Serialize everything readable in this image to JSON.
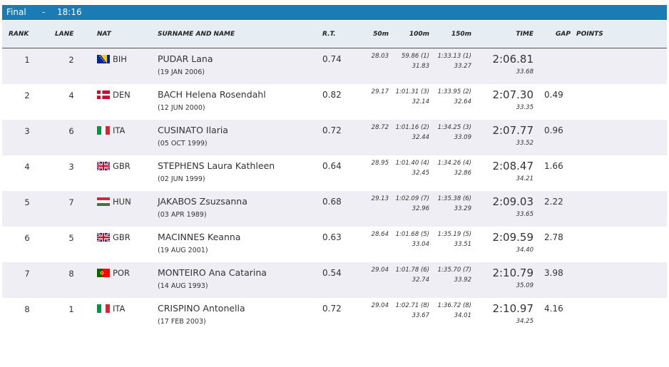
{
  "title_bar": {
    "phase": "Final",
    "separator": "-",
    "time": "18:16"
  },
  "columns": {
    "rank": "RANK",
    "lane": "LANE",
    "nat": "NAT",
    "name": "SURNAME AND NAME",
    "rt": "R.T.",
    "s50": "50m",
    "s100": "100m",
    "s150": "150m",
    "time": "TIME",
    "gap": "GAP",
    "points": "POINTS"
  },
  "rows": [
    {
      "rank": "1",
      "lane": "2",
      "flag": "bih-flag-icon",
      "nat": "BIH",
      "name": "PUDAR Lana",
      "dob": "(19 JAN 2006)",
      "rt": "0.74",
      "s50": "28.03",
      "s100": "59.86 (1)",
      "s100_lap": "31.83",
      "s150": "1:33.13 (1)",
      "s150_lap": "33.27",
      "time": "2:06.81",
      "time_lap": "33.68",
      "gap": ""
    },
    {
      "rank": "2",
      "lane": "4",
      "flag": "den-flag-icon",
      "nat": "DEN",
      "name": "BACH Helena Rosendahl",
      "dob": "(12 JUN 2000)",
      "rt": "0.82",
      "s50": "29.17",
      "s100": "1:01.31 (3)",
      "s100_lap": "32.14",
      "s150": "1:33.95 (2)",
      "s150_lap": "32.64",
      "time": "2:07.30",
      "time_lap": "33.35",
      "gap": "0.49"
    },
    {
      "rank": "3",
      "lane": "6",
      "flag": "ita-flag-icon",
      "nat": "ITA",
      "name": "CUSINATO Ilaria",
      "dob": "(05 OCT 1999)",
      "rt": "0.72",
      "s50": "28.72",
      "s100": "1:01.16 (2)",
      "s100_lap": "32.44",
      "s150": "1:34.25 (3)",
      "s150_lap": "33.09",
      "time": "2:07.77",
      "time_lap": "33.52",
      "gap": "0.96"
    },
    {
      "rank": "4",
      "lane": "3",
      "flag": "gbr-flag-icon",
      "nat": "GBR",
      "name": "STEPHENS Laura Kathleen",
      "dob": "(02 JUN 1999)",
      "rt": "0.64",
      "s50": "28.95",
      "s100": "1:01.40 (4)",
      "s100_lap": "32.45",
      "s150": "1:34.26 (4)",
      "s150_lap": "32.86",
      "time": "2:08.47",
      "time_lap": "34.21",
      "gap": "1.66"
    },
    {
      "rank": "5",
      "lane": "7",
      "flag": "hun-flag-icon",
      "nat": "HUN",
      "name": "JAKABOS Zsuzsanna",
      "dob": "(03 APR 1989)",
      "rt": "0.68",
      "s50": "29.13",
      "s100": "1:02.09 (7)",
      "s100_lap": "32.96",
      "s150": "1:35.38 (6)",
      "s150_lap": "33.29",
      "time": "2:09.03",
      "time_lap": "33.65",
      "gap": "2.22"
    },
    {
      "rank": "6",
      "lane": "5",
      "flag": "gbr-flag-icon",
      "nat": "GBR",
      "name": "MACINNES Keanna",
      "dob": "(19 AUG 2001)",
      "rt": "0.63",
      "s50": "28.64",
      "s100": "1:01.68 (5)",
      "s100_lap": "33.04",
      "s150": "1:35.19 (5)",
      "s150_lap": "33.51",
      "time": "2:09.59",
      "time_lap": "34.40",
      "gap": "2.78"
    },
    {
      "rank": "7",
      "lane": "8",
      "flag": "por-flag-icon",
      "nat": "POR",
      "name": "MONTEIRO Ana Catarina",
      "dob": "(14 AUG 1993)",
      "rt": "0.54",
      "s50": "29.04",
      "s100": "1:01.78 (6)",
      "s100_lap": "32.74",
      "s150": "1:35.70 (7)",
      "s150_lap": "33.92",
      "time": "2:10.79",
      "time_lap": "35.09",
      "gap": "3.98"
    },
    {
      "rank": "8",
      "lane": "1",
      "flag": "ita-flag-icon",
      "nat": "ITA",
      "name": "CRISPINO Antonella",
      "dob": "(17 FEB 2003)",
      "rt": "0.72",
      "s50": "29.04",
      "s100": "1:02.71 (8)",
      "s100_lap": "33.67",
      "s150": "1:36.72 (8)",
      "s150_lap": "34.01",
      "time": "2:10.97",
      "time_lap": "34.25",
      "gap": "4.16"
    }
  ]
}
